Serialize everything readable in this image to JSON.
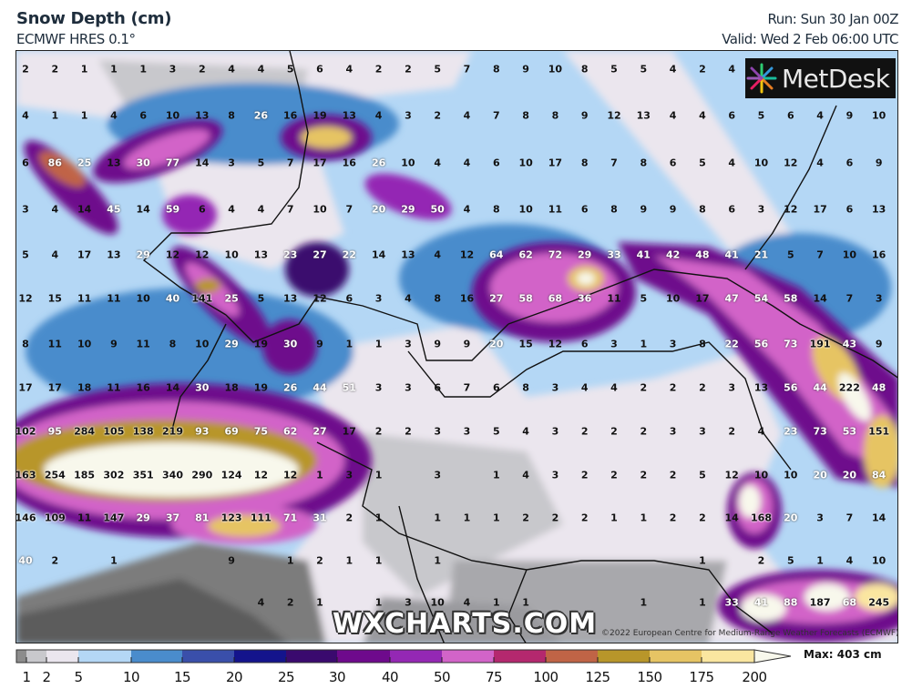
{
  "header": {
    "title": "Snow Depth (cm)",
    "subtitle": "ECMWF HRES 0.1°",
    "run": "Run: Sun 30 Jan 00Z",
    "valid": "Valid: Wed 2 Feb 06:00 UTC"
  },
  "logo": {
    "text": "MetDesk"
  },
  "watermark": "WXCHARTS.COM",
  "copyright": "©2022 European Centre for Medium-Range Weather Forecasts (ECMWF)",
  "legend": {
    "ticks": [
      "1",
      "2",
      "5",
      "10",
      "15",
      "20",
      "25",
      "30",
      "40",
      "50",
      "75",
      "100",
      "125",
      "150",
      "175",
      "200"
    ],
    "colors": [
      "#8c8c8c",
      "#c8c8cc",
      "#ebe6ee",
      "#b4d7f5",
      "#4a8ccc",
      "#3a4faa",
      "#14148c",
      "#3a0a6e",
      "#6e0a8c",
      "#9428b4",
      "#d264c8",
      "#b4286e",
      "#c06446",
      "#b8962a",
      "#e6c464",
      "#fae6a0",
      "#f8f8ec"
    ],
    "max_label": "Max: 403 cm"
  },
  "grid_values": [
    [
      2,
      2,
      1,
      1,
      1,
      3,
      2,
      4,
      4,
      5,
      6,
      4,
      2,
      2,
      5,
      7,
      8,
      9,
      10,
      8,
      5,
      5,
      4,
      2,
      4,
      null,
      null,
      null,
      null,
      null
    ],
    [
      4,
      1,
      1,
      4,
      6,
      10,
      13,
      8,
      26,
      16,
      19,
      13,
      4,
      3,
      2,
      4,
      7,
      8,
      8,
      9,
      12,
      13,
      4,
      4,
      6,
      5,
      6,
      4,
      9,
      10
    ],
    [
      6,
      86,
      25,
      13,
      30,
      77,
      14,
      3,
      5,
      7,
      17,
      16,
      26,
      10,
      4,
      4,
      6,
      10,
      17,
      8,
      7,
      8,
      6,
      5,
      4,
      10,
      12,
      4,
      6,
      9
    ],
    [
      3,
      4,
      14,
      45,
      14,
      59,
      6,
      4,
      4,
      7,
      10,
      7,
      20,
      29,
      50,
      4,
      8,
      10,
      11,
      6,
      8,
      9,
      9,
      8,
      6,
      3,
      12,
      17,
      6,
      13
    ],
    [
      5,
      4,
      17,
      13,
      29,
      12,
      12,
      10,
      13,
      23,
      27,
      22,
      14,
      13,
      4,
      12,
      64,
      62,
      72,
      29,
      33,
      41,
      42,
      48,
      41,
      21,
      5,
      7,
      10,
      16
    ],
    [
      12,
      15,
      11,
      11,
      10,
      40,
      141,
      25,
      5,
      13,
      12,
      6,
      3,
      4,
      8,
      16,
      27,
      58,
      68,
      36,
      11,
      5,
      10,
      17,
      47,
      54,
      58,
      14,
      7,
      3
    ],
    [
      8,
      11,
      10,
      9,
      11,
      8,
      10,
      29,
      19,
      30,
      9,
      1,
      1,
      3,
      9,
      9,
      20,
      15,
      12,
      6,
      3,
      1,
      3,
      8,
      22,
      56,
      73,
      191,
      43,
      9
    ],
    [
      17,
      17,
      18,
      11,
      16,
      14,
      30,
      18,
      19,
      26,
      44,
      51,
      3,
      3,
      6,
      7,
      6,
      8,
      3,
      4,
      4,
      2,
      2,
      2,
      3,
      13,
      56,
      44,
      222,
      48
    ],
    [
      102,
      95,
      284,
      105,
      138,
      219,
      93,
      69,
      75,
      62,
      27,
      17,
      2,
      2,
      3,
      3,
      5,
      4,
      3,
      2,
      2,
      2,
      3,
      3,
      2,
      4,
      23,
      73,
      53,
      151
    ],
    [
      163,
      254,
      185,
      302,
      351,
      340,
      290,
      124,
      12,
      12,
      1,
      3,
      1,
      null,
      3,
      null,
      1,
      4,
      3,
      2,
      2,
      2,
      2,
      5,
      12,
      10,
      10,
      20,
      20,
      84
    ],
    [
      146,
      109,
      11,
      147,
      29,
      37,
      81,
      123,
      111,
      71,
      31,
      2,
      1,
      null,
      1,
      1,
      1,
      2,
      2,
      2,
      1,
      1,
      2,
      2,
      14,
      168,
      20,
      3,
      7,
      14
    ],
    [
      40,
      2,
      null,
      1,
      null,
      null,
      null,
      9,
      null,
      1,
      2,
      1,
      1,
      null,
      1,
      null,
      null,
      null,
      null,
      null,
      null,
      null,
      null,
      1,
      null,
      2,
      5,
      1,
      4,
      10
    ],
    [
      null,
      null,
      null,
      null,
      null,
      null,
      null,
      null,
      4,
      2,
      1,
      null,
      1,
      3,
      10,
      4,
      1,
      1,
      null,
      null,
      null,
      1,
      null,
      1,
      33,
      41,
      88,
      187,
      68,
      245
    ]
  ]
}
